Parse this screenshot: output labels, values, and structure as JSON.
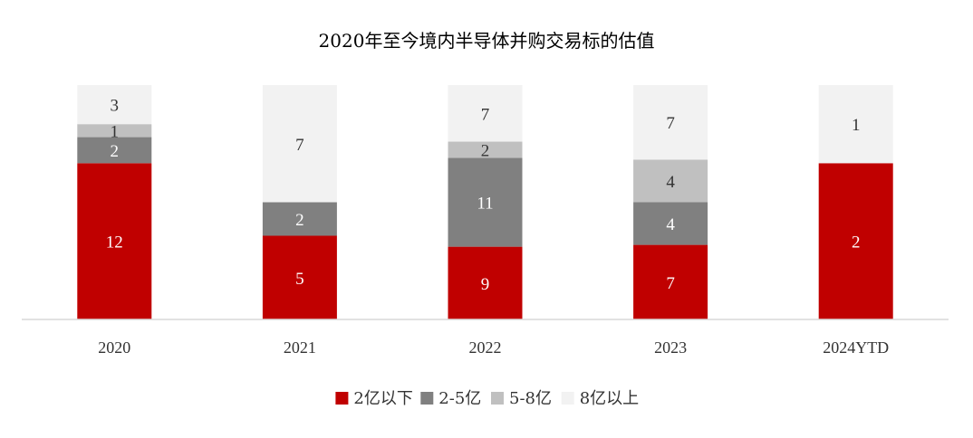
{
  "chart_data": {
    "type": "bar",
    "stacked": true,
    "normalized": true,
    "title": "2020年至今境内半导体并购交易标的估值",
    "categories": [
      "2020",
      "2021",
      "2022",
      "2023",
      "2024YTD"
    ],
    "series": [
      {
        "name": "2亿以下",
        "color": "#C00000",
        "label_color": "#FFFFFF",
        "values": [
          12,
          5,
          9,
          7,
          2
        ]
      },
      {
        "name": "2-5亿",
        "color": "#808080",
        "label_color": "#FFFFFF",
        "values": [
          2,
          2,
          11,
          4,
          0
        ]
      },
      {
        "name": "5-8亿",
        "color": "#C0C0C0",
        "label_color": "#333333",
        "values": [
          1,
          0,
          2,
          4,
          0
        ]
      },
      {
        "name": "8亿以上",
        "color": "#F2F2F2",
        "label_color": "#333333",
        "values": [
          3,
          7,
          7,
          7,
          1
        ]
      }
    ],
    "legend_position": "bottom",
    "grid": false,
    "xlabel": "",
    "ylabel": ""
  }
}
